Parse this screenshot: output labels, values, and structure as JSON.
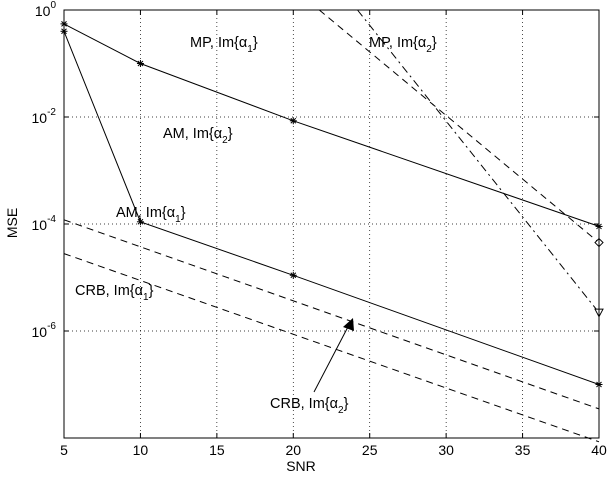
{
  "chart_data": {
    "type": "line",
    "xlabel": "SNR",
    "ylabel": "MSE",
    "xlim": [
      5,
      40
    ],
    "ylim_log10": [
      -8,
      0
    ],
    "yscale": "log",
    "grid": true,
    "x_ticks": [
      "5",
      "10",
      "15",
      "20",
      "25",
      "30",
      "35",
      "40"
    ],
    "y_ticks": [
      {
        "base": "10",
        "exp": "0"
      },
      {
        "base": "10",
        "exp": "-2"
      },
      {
        "base": "10",
        "exp": "-4"
      },
      {
        "base": "10",
        "exp": "-6"
      }
    ],
    "series": [
      {
        "id": "am2",
        "style": "solid",
        "marker": "star",
        "points": [
          [
            5,
            0.55
          ],
          [
            10,
            0.1
          ],
          [
            20,
            0.0085
          ],
          [
            40,
            9e-05
          ]
        ]
      },
      {
        "id": "am1",
        "style": "solid",
        "marker": "star",
        "points": [
          [
            5,
            0.4
          ],
          [
            10,
            0.00011
          ],
          [
            20,
            1.1e-05
          ],
          [
            40,
            1e-07
          ]
        ]
      },
      {
        "id": "mp1",
        "style": "dashed",
        "marker": "diamond",
        "points": [
          [
            21.7,
            1.0
          ],
          [
            40,
            4.5e-05
          ]
        ]
      },
      {
        "id": "mp2",
        "style": "dashdot",
        "marker": "triangle-down",
        "points": [
          [
            24.2,
            1.0
          ],
          [
            40,
            2.2e-06
          ]
        ]
      },
      {
        "id": "crb2",
        "style": "dashed",
        "marker": "none",
        "points": [
          [
            5,
            0.00012
          ],
          [
            40,
            3.5e-08
          ]
        ]
      },
      {
        "id": "crb1",
        "style": "dashed",
        "marker": "none",
        "points": [
          [
            5,
            2.8e-05
          ],
          [
            40,
            8.5e-09
          ]
        ]
      }
    ],
    "annotations": [
      {
        "id": "mp1",
        "pre": "MP, Im{α",
        "sub": "1",
        "post": "}"
      },
      {
        "id": "mp2",
        "pre": "MP, Im{α",
        "sub": "2",
        "post": "}"
      },
      {
        "id": "am2",
        "pre": "AM, Im{α",
        "sub": "2",
        "post": "}"
      },
      {
        "id": "am1",
        "pre": "AM, Im{α",
        "sub": "1",
        "post": "}"
      },
      {
        "id": "crb1",
        "pre": "CRB, Im{α",
        "sub": "1",
        "post": "}"
      },
      {
        "id": "crb2",
        "pre": "CRB, Im{α",
        "sub": "2",
        "post": "}"
      }
    ]
  }
}
